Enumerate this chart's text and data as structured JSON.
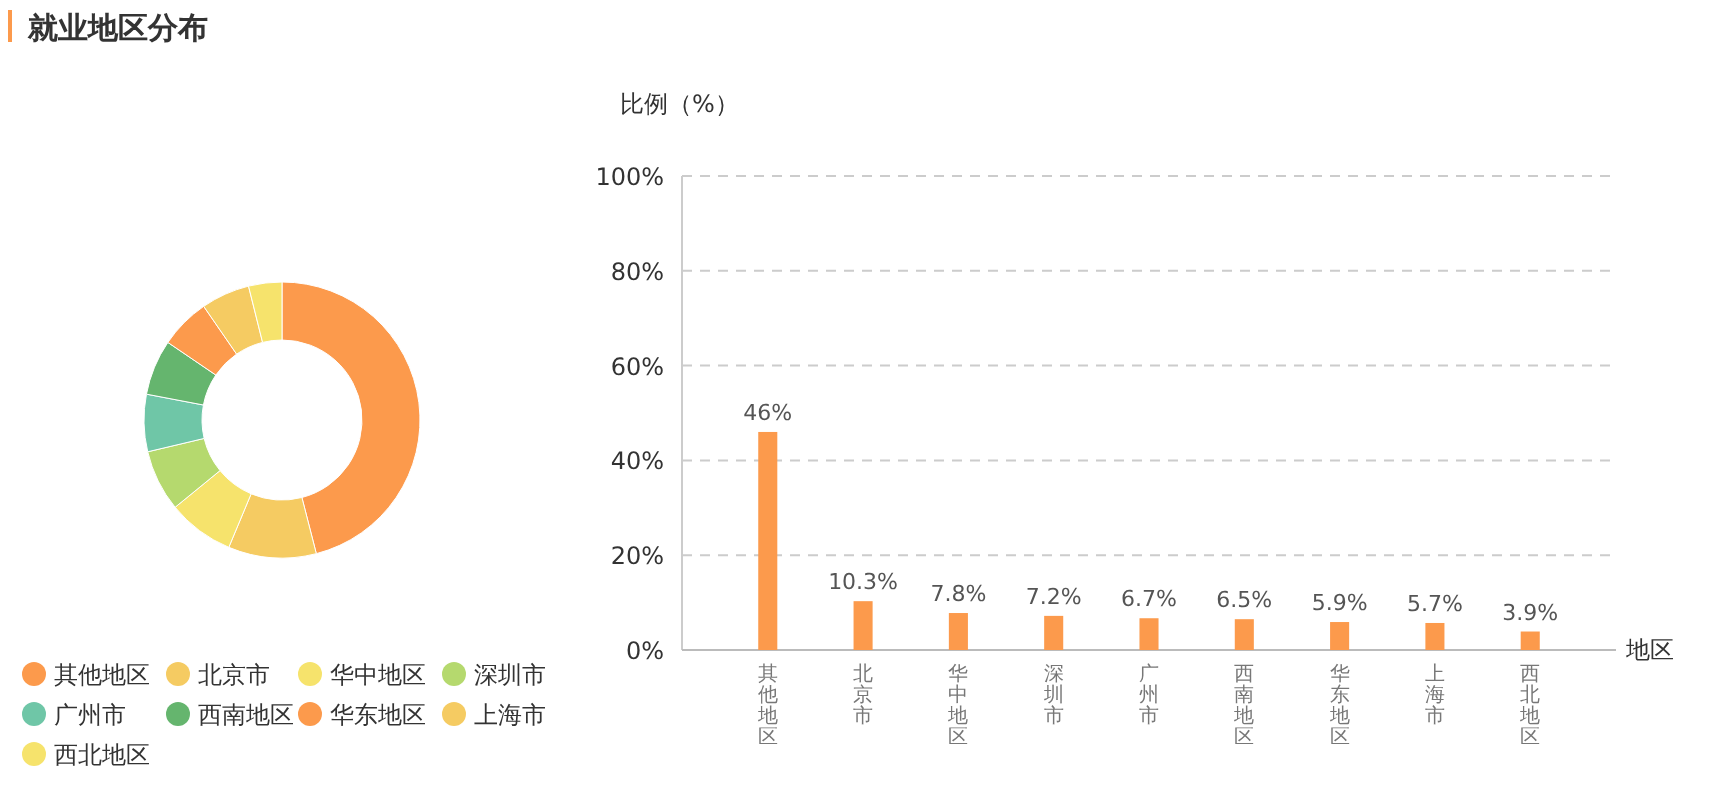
{
  "chart_data": [
    {
      "type": "donut",
      "title": "就业地区分布",
      "categories": [
        "其他地区",
        "北京市",
        "华中地区",
        "深圳市",
        "广州市",
        "西南地区",
        "华东地区",
        "上海市",
        "西北地区"
      ],
      "values": [
        46,
        10.3,
        7.8,
        7.2,
        6.7,
        6.5,
        5.9,
        5.7,
        3.9
      ],
      "colors": [
        "#fc9a4c",
        "#f5cb62",
        "#f6e36c",
        "#b5d96e",
        "#6fc6a7",
        "#65b56e",
        "#fc9a4c",
        "#f5cb62",
        "#f6e36c"
      ],
      "legend": "bottom left"
    },
    {
      "type": "bar",
      "categories": [
        "其他地区",
        "北京市",
        "华中地区",
        "深圳市",
        "广州市",
        "西南地区",
        "华东地区",
        "上海市",
        "西北地区"
      ],
      "values": [
        46,
        10.3,
        7.8,
        7.2,
        6.7,
        6.5,
        5.9,
        5.7,
        3.9
      ],
      "value_labels": [
        "46%",
        "10.3%",
        "7.8%",
        "7.2%",
        "6.7%",
        "6.5%",
        "5.9%",
        "5.7%",
        "3.9%"
      ],
      "color": "#fc9a4c",
      "xlabel": "地区",
      "ylabel": "比例（%）",
      "ylim": [
        0,
        100
      ],
      "yticks": [
        {
          "value": 0,
          "label": "0%"
        },
        {
          "value": 20,
          "label": "20%"
        },
        {
          "value": 40,
          "label": "40%"
        },
        {
          "value": 60,
          "label": "60%"
        },
        {
          "value": 80,
          "label": "80%"
        },
        {
          "value": 100,
          "label": "100%"
        }
      ],
      "grid": "y",
      "line_style": "dashed"
    }
  ]
}
